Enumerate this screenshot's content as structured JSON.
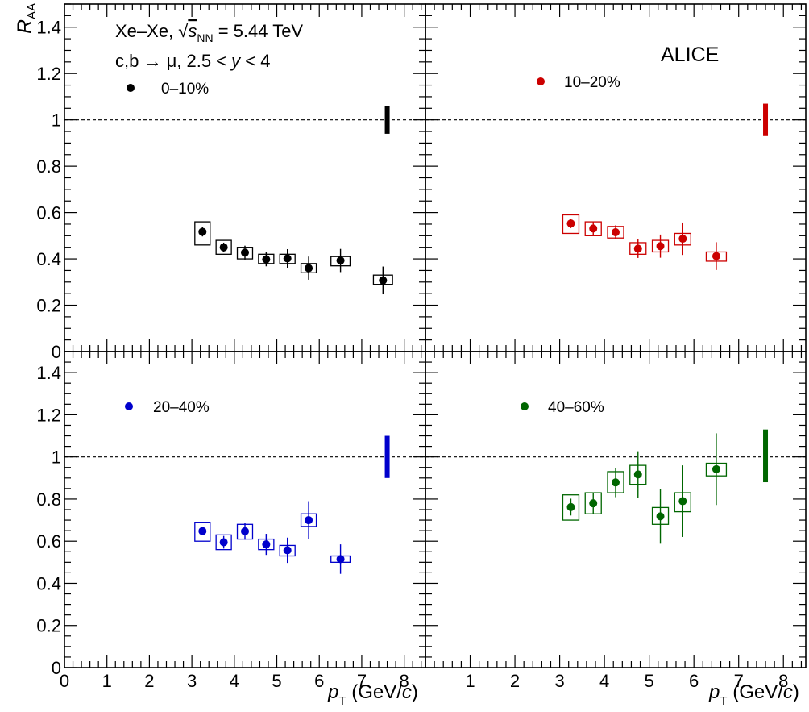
{
  "figure": {
    "y_axis_label": "R",
    "y_axis_label_sub": "AA",
    "x_axis_label_p": "p",
    "x_axis_label_sub": "T",
    "x_axis_label_unit_prefix": " (GeV/",
    "x_axis_label_unit_c": "c",
    "x_axis_label_unit_suffix": ")",
    "system_line_prefix": "Xe–Xe, ",
    "system_line_sqrt": "√",
    "system_line_s": "s",
    "system_line_sub": "NN",
    "system_line_value": " = 5.44 TeV",
    "process_line_prefix": "c,b → μ, 2.5 < ",
    "process_line_y": "y",
    "process_line_suffix": " < 4",
    "experiment": "ALICE",
    "reference_line_value": 1
  },
  "chart_data": [
    {
      "type": "scatter",
      "panel": "top-left",
      "series": [
        {
          "name": "0–10%",
          "color": "#000000",
          "points": [
            {
              "x": 3.25,
              "y": 0.517,
              "xlo": 3.0,
              "xhi": 3.5,
              "stat": 0.02,
              "syslo": 0.46,
              "syshi": 0.56
            },
            {
              "x": 3.75,
              "y": 0.45,
              "xlo": 3.5,
              "xhi": 4.0,
              "stat": 0.02,
              "syslo": 0.42,
              "syshi": 0.48
            },
            {
              "x": 4.25,
              "y": 0.427,
              "xlo": 4.0,
              "xhi": 4.5,
              "stat": 0.03,
              "syslo": 0.4,
              "syshi": 0.45
            },
            {
              "x": 4.75,
              "y": 0.398,
              "xlo": 4.5,
              "xhi": 5.0,
              "stat": 0.03,
              "syslo": 0.38,
              "syshi": 0.42
            },
            {
              "x": 5.25,
              "y": 0.402,
              "xlo": 5.0,
              "xhi": 5.5,
              "stat": 0.04,
              "syslo": 0.38,
              "syshi": 0.42
            },
            {
              "x": 5.75,
              "y": 0.36,
              "xlo": 5.5,
              "xhi": 6.0,
              "stat": 0.05,
              "syslo": 0.34,
              "syshi": 0.38
            },
            {
              "x": 6.5,
              "y": 0.393,
              "xlo": 6.0,
              "xhi": 7.0,
              "stat": 0.05,
              "syslo": 0.37,
              "syshi": 0.41
            },
            {
              "x": 7.5,
              "y": 0.307,
              "xlo": 7.0,
              "xhi": 8.0,
              "stat": 0.06,
              "syslo": 0.29,
              "syshi": 0.33
            }
          ]
        }
      ],
      "global_uncertainty": [
        0.94,
        1.06
      ],
      "xlim": [
        0,
        8.5
      ],
      "ylim": [
        0,
        1.5
      ]
    },
    {
      "type": "scatter",
      "panel": "top-right",
      "series": [
        {
          "name": "10–20%",
          "color": "#cc0000",
          "points": [
            {
              "x": 3.25,
              "y": 0.553,
              "xlo": 3.0,
              "xhi": 3.5,
              "stat": 0.02,
              "syslo": 0.51,
              "syshi": 0.59
            },
            {
              "x": 3.75,
              "y": 0.531,
              "xlo": 3.5,
              "xhi": 4.0,
              "stat": 0.03,
              "syslo": 0.5,
              "syshi": 0.56
            },
            {
              "x": 4.25,
              "y": 0.515,
              "xlo": 4.0,
              "xhi": 4.5,
              "stat": 0.03,
              "syslo": 0.49,
              "syshi": 0.54
            },
            {
              "x": 4.75,
              "y": 0.444,
              "xlo": 4.5,
              "xhi": 5.0,
              "stat": 0.04,
              "syslo": 0.42,
              "syshi": 0.47
            },
            {
              "x": 5.25,
              "y": 0.455,
              "xlo": 5.0,
              "xhi": 5.5,
              "stat": 0.05,
              "syslo": 0.43,
              "syshi": 0.48
            },
            {
              "x": 5.75,
              "y": 0.487,
              "xlo": 5.5,
              "xhi": 6.0,
              "stat": 0.07,
              "syslo": 0.46,
              "syshi": 0.51
            },
            {
              "x": 6.5,
              "y": 0.412,
              "xlo": 6.0,
              "xhi": 7.0,
              "stat": 0.06,
              "syslo": 0.39,
              "syshi": 0.43
            }
          ]
        }
      ],
      "global_uncertainty": [
        0.93,
        1.07
      ],
      "xlim": [
        0,
        8.5
      ],
      "ylim": [
        0,
        1.5
      ]
    },
    {
      "type": "scatter",
      "panel": "bottom-left",
      "series": [
        {
          "name": "20–40%",
          "color": "#0000cc",
          "points": [
            {
              "x": 3.25,
              "y": 0.648,
              "xlo": 3.0,
              "xhi": 3.5,
              "stat": 0.02,
              "syslo": 0.6,
              "syshi": 0.69
            },
            {
              "x": 3.75,
              "y": 0.595,
              "xlo": 3.5,
              "xhi": 4.0,
              "stat": 0.03,
              "syslo": 0.56,
              "syshi": 0.63
            },
            {
              "x": 4.25,
              "y": 0.647,
              "xlo": 4.0,
              "xhi": 4.5,
              "stat": 0.04,
              "syslo": 0.61,
              "syshi": 0.68
            },
            {
              "x": 4.75,
              "y": 0.585,
              "xlo": 4.5,
              "xhi": 5.0,
              "stat": 0.05,
              "syslo": 0.56,
              "syshi": 0.61
            },
            {
              "x": 5.25,
              "y": 0.557,
              "xlo": 5.0,
              "xhi": 5.5,
              "stat": 0.06,
              "syslo": 0.53,
              "syshi": 0.58
            },
            {
              "x": 5.75,
              "y": 0.7,
              "xlo": 5.5,
              "xhi": 6.0,
              "stat": 0.09,
              "syslo": 0.67,
              "syshi": 0.73
            },
            {
              "x": 6.5,
              "y": 0.515,
              "xlo": 6.0,
              "xhi": 7.0,
              "stat": 0.07,
              "syslo": 0.5,
              "syshi": 0.53
            }
          ]
        }
      ],
      "global_uncertainty": [
        0.9,
        1.1
      ],
      "xlim": [
        0,
        8.5
      ],
      "ylim": [
        0,
        1.5
      ]
    },
    {
      "type": "scatter",
      "panel": "bottom-right",
      "series": [
        {
          "name": "40–60%",
          "color": "#006600",
          "points": [
            {
              "x": 3.25,
              "y": 0.762,
              "xlo": 3.0,
              "xhi": 3.5,
              "stat": 0.04,
              "syslo": 0.7,
              "syshi": 0.82
            },
            {
              "x": 3.75,
              "y": 0.78,
              "xlo": 3.5,
              "xhi": 4.0,
              "stat": 0.05,
              "syslo": 0.73,
              "syshi": 0.83
            },
            {
              "x": 4.25,
              "y": 0.879,
              "xlo": 4.0,
              "xhi": 4.5,
              "stat": 0.07,
              "syslo": 0.83,
              "syshi": 0.93
            },
            {
              "x": 4.75,
              "y": 0.917,
              "xlo": 4.5,
              "xhi": 5.0,
              "stat": 0.11,
              "syslo": 0.87,
              "syshi": 0.96
            },
            {
              "x": 5.25,
              "y": 0.718,
              "xlo": 5.0,
              "xhi": 5.5,
              "stat": 0.13,
              "syslo": 0.68,
              "syshi": 0.76
            },
            {
              "x": 5.75,
              "y": 0.79,
              "xlo": 5.5,
              "xhi": 6.0,
              "stat": 0.17,
              "syslo": 0.74,
              "syshi": 0.83
            },
            {
              "x": 6.5,
              "y": 0.942,
              "xlo": 6.0,
              "xhi": 7.0,
              "stat": 0.17,
              "syslo": 0.91,
              "syshi": 0.97
            }
          ]
        }
      ],
      "global_uncertainty": [
        0.88,
        1.13
      ],
      "xlim": [
        0,
        8.5
      ],
      "ylim": [
        0,
        1.5
      ]
    }
  ],
  "axes": {
    "y_ticks": [
      "0",
      "0.2",
      "0.4",
      "0.6",
      "0.8",
      "1",
      "1.2",
      "1.4"
    ],
    "y_tick_values": [
      0,
      0.2,
      0.4,
      0.6,
      0.8,
      1.0,
      1.2,
      1.4
    ],
    "x_ticks_left": [
      "0",
      "1",
      "2",
      "3",
      "4",
      "5",
      "6",
      "7",
      "8"
    ],
    "x_ticks_right": [
      "1",
      "2",
      "3",
      "4",
      "5",
      "6",
      "7",
      "8"
    ]
  }
}
